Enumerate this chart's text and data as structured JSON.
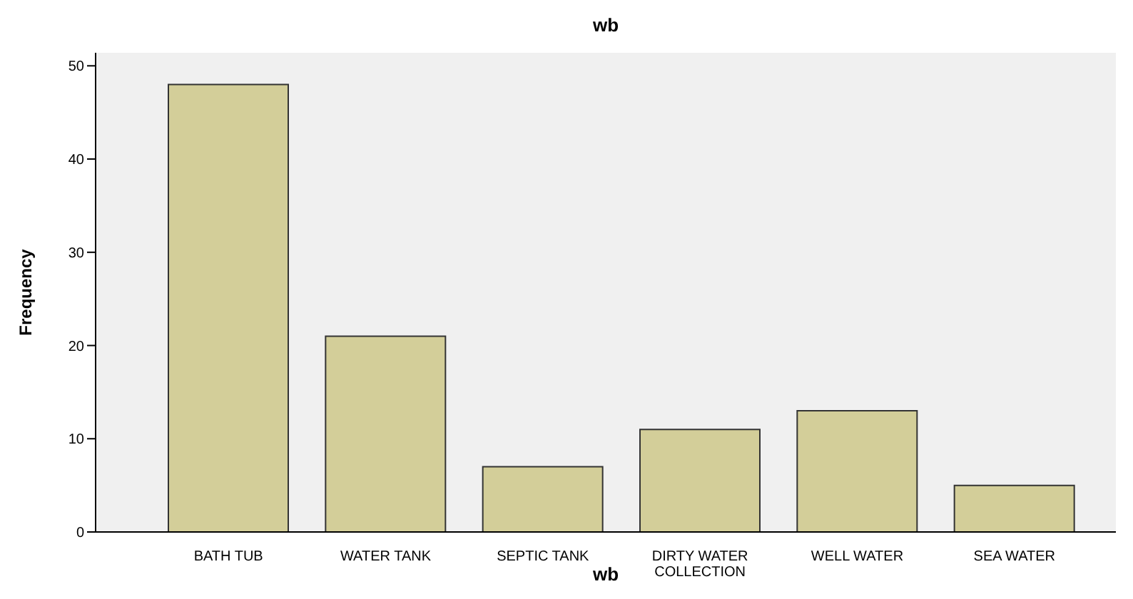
{
  "chart_data": {
    "type": "bar",
    "title": "wb",
    "xlabel": "wb",
    "ylabel": "Frequency",
    "categories": [
      "BATH TUB",
      "WATER TANK",
      "SEPTIC TANK",
      "DIRTY WATER COLLECTION",
      "WELL WATER",
      "SEA WATER"
    ],
    "values": [
      48,
      21,
      7,
      11,
      13,
      5
    ],
    "color": "#d3ce99",
    "ylim": [
      0,
      51.4
    ],
    "yticks": [
      0,
      10,
      20,
      30,
      40,
      50
    ],
    "grid": false,
    "legend": false
  }
}
